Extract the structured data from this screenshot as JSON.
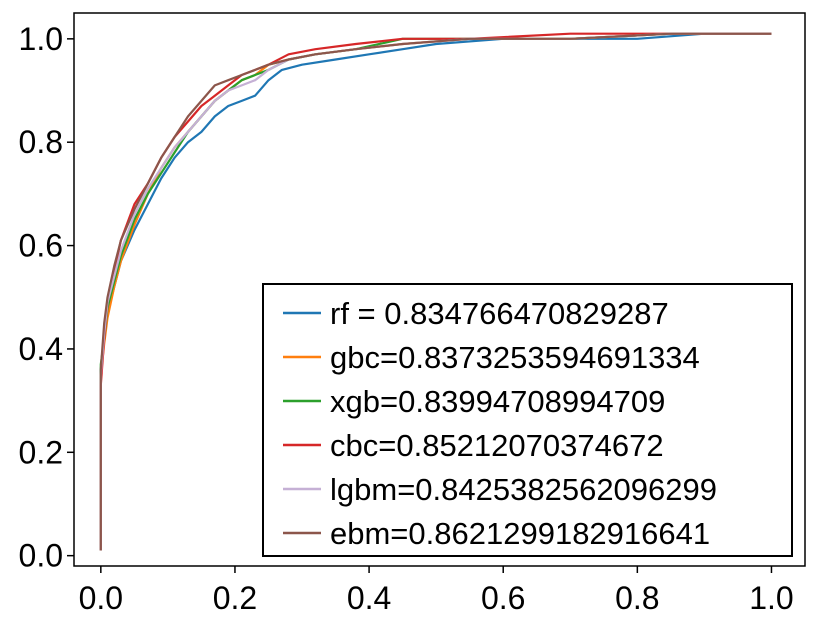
{
  "chart_data": {
    "type": "line",
    "title": "",
    "xlabel": "",
    "ylabel": "",
    "xlim": [
      -0.04,
      1.05
    ],
    "ylim": [
      -0.02,
      1.05
    ],
    "xticks": [
      0.0,
      0.2,
      0.4,
      0.6,
      0.8,
      1.0
    ],
    "yticks": [
      0.0,
      0.2,
      0.4,
      0.6,
      0.8,
      1.0
    ],
    "xtick_labels": [
      "0.0",
      "0.2",
      "0.4",
      "0.6",
      "0.8",
      "1.0"
    ],
    "ytick_labels": [
      "0.0",
      "0.2",
      "0.4",
      "0.6",
      "0.8",
      "1.0"
    ],
    "grid": false,
    "legend_position": "lower-right",
    "series": [
      {
        "name": "rf = 0.834766470829287",
        "color": "#1f77b4",
        "points": [
          [
            0.0,
            0.01
          ],
          [
            0.0,
            0.36
          ],
          [
            0.005,
            0.42
          ],
          [
            0.01,
            0.47
          ],
          [
            0.02,
            0.52
          ],
          [
            0.03,
            0.57
          ],
          [
            0.05,
            0.63
          ],
          [
            0.07,
            0.68
          ],
          [
            0.09,
            0.73
          ],
          [
            0.11,
            0.77
          ],
          [
            0.13,
            0.8
          ],
          [
            0.15,
            0.82
          ],
          [
            0.17,
            0.85
          ],
          [
            0.19,
            0.87
          ],
          [
            0.21,
            0.88
          ],
          [
            0.23,
            0.89
          ],
          [
            0.25,
            0.92
          ],
          [
            0.27,
            0.94
          ],
          [
            0.3,
            0.95
          ],
          [
            0.35,
            0.96
          ],
          [
            0.4,
            0.97
          ],
          [
            0.45,
            0.98
          ],
          [
            0.5,
            0.99
          ],
          [
            0.6,
            1.0
          ],
          [
            0.7,
            1.0
          ],
          [
            0.8,
            1.0
          ],
          [
            0.9,
            1.01
          ],
          [
            1.0,
            1.01
          ]
        ]
      },
      {
        "name": "gbc=0.8373253594691334",
        "color": "#ff7f0e",
        "points": [
          [
            0.0,
            0.01
          ],
          [
            0.0,
            0.35
          ],
          [
            0.005,
            0.41
          ],
          [
            0.01,
            0.46
          ],
          [
            0.02,
            0.52
          ],
          [
            0.03,
            0.57
          ],
          [
            0.05,
            0.64
          ],
          [
            0.07,
            0.7
          ],
          [
            0.09,
            0.75
          ],
          [
            0.11,
            0.79
          ],
          [
            0.13,
            0.82
          ],
          [
            0.15,
            0.85
          ],
          [
            0.17,
            0.88
          ],
          [
            0.19,
            0.9
          ],
          [
            0.21,
            0.92
          ],
          [
            0.23,
            0.93
          ],
          [
            0.25,
            0.95
          ],
          [
            0.28,
            0.96
          ],
          [
            0.32,
            0.97
          ],
          [
            0.38,
            0.98
          ],
          [
            0.45,
            0.99
          ],
          [
            0.55,
            1.0
          ],
          [
            0.7,
            1.0
          ],
          [
            0.85,
            1.01
          ],
          [
            1.0,
            1.01
          ]
        ]
      },
      {
        "name": "xgb=0.83994708994709",
        "color": "#2ca02c",
        "points": [
          [
            0.0,
            0.01
          ],
          [
            0.0,
            0.37
          ],
          [
            0.005,
            0.42
          ],
          [
            0.01,
            0.48
          ],
          [
            0.02,
            0.53
          ],
          [
            0.03,
            0.58
          ],
          [
            0.05,
            0.65
          ],
          [
            0.07,
            0.7
          ],
          [
            0.09,
            0.74
          ],
          [
            0.11,
            0.78
          ],
          [
            0.13,
            0.82
          ],
          [
            0.15,
            0.85
          ],
          [
            0.17,
            0.88
          ],
          [
            0.19,
            0.9
          ],
          [
            0.21,
            0.92
          ],
          [
            0.23,
            0.93
          ],
          [
            0.25,
            0.94
          ],
          [
            0.28,
            0.96
          ],
          [
            0.32,
            0.97
          ],
          [
            0.38,
            0.98
          ],
          [
            0.45,
            1.0
          ],
          [
            0.55,
            1.0
          ],
          [
            0.7,
            1.0
          ],
          [
            0.85,
            1.01
          ],
          [
            1.0,
            1.01
          ]
        ]
      },
      {
        "name": "cbc=0.85212070374672",
        "color": "#d62728",
        "points": [
          [
            0.0,
            0.01
          ],
          [
            0.0,
            0.33
          ],
          [
            0.005,
            0.42
          ],
          [
            0.01,
            0.49
          ],
          [
            0.02,
            0.55
          ],
          [
            0.03,
            0.61
          ],
          [
            0.05,
            0.68
          ],
          [
            0.07,
            0.72
          ],
          [
            0.09,
            0.77
          ],
          [
            0.11,
            0.81
          ],
          [
            0.13,
            0.84
          ],
          [
            0.15,
            0.87
          ],
          [
            0.17,
            0.89
          ],
          [
            0.19,
            0.91
          ],
          [
            0.21,
            0.93
          ],
          [
            0.23,
            0.94
          ],
          [
            0.25,
            0.95
          ],
          [
            0.28,
            0.97
          ],
          [
            0.32,
            0.98
          ],
          [
            0.38,
            0.99
          ],
          [
            0.45,
            1.0
          ],
          [
            0.55,
            1.0
          ],
          [
            0.7,
            1.01
          ],
          [
            0.85,
            1.01
          ],
          [
            1.0,
            1.01
          ]
        ]
      },
      {
        "name": "lgbm=0.8425382562096299",
        "color": "#c5b0d5",
        "points": [
          [
            0.0,
            0.01
          ],
          [
            0.0,
            0.35
          ],
          [
            0.005,
            0.43
          ],
          [
            0.01,
            0.49
          ],
          [
            0.02,
            0.54
          ],
          [
            0.03,
            0.59
          ],
          [
            0.05,
            0.66
          ],
          [
            0.07,
            0.71
          ],
          [
            0.09,
            0.75
          ],
          [
            0.11,
            0.79
          ],
          [
            0.13,
            0.82
          ],
          [
            0.15,
            0.85
          ],
          [
            0.17,
            0.88
          ],
          [
            0.19,
            0.9
          ],
          [
            0.21,
            0.91
          ],
          [
            0.23,
            0.92
          ],
          [
            0.25,
            0.94
          ],
          [
            0.28,
            0.96
          ],
          [
            0.32,
            0.97
          ],
          [
            0.38,
            0.98
          ],
          [
            0.45,
            0.99
          ],
          [
            0.55,
            1.0
          ],
          [
            0.7,
            1.0
          ],
          [
            0.85,
            1.01
          ],
          [
            1.0,
            1.01
          ]
        ]
      },
      {
        "name": "ebm=0.8621299182916641",
        "color": "#8c564b",
        "points": [
          [
            0.0,
            0.01
          ],
          [
            0.0,
            0.36
          ],
          [
            0.005,
            0.45
          ],
          [
            0.01,
            0.5
          ],
          [
            0.02,
            0.56
          ],
          [
            0.03,
            0.61
          ],
          [
            0.05,
            0.67
          ],
          [
            0.07,
            0.72
          ],
          [
            0.09,
            0.77
          ],
          [
            0.11,
            0.81
          ],
          [
            0.13,
            0.85
          ],
          [
            0.15,
            0.88
          ],
          [
            0.17,
            0.91
          ],
          [
            0.19,
            0.92
          ],
          [
            0.21,
            0.93
          ],
          [
            0.23,
            0.94
          ],
          [
            0.25,
            0.95
          ],
          [
            0.28,
            0.96
          ],
          [
            0.32,
            0.97
          ],
          [
            0.38,
            0.98
          ],
          [
            0.45,
            0.99
          ],
          [
            0.55,
            1.0
          ],
          [
            0.7,
            1.0
          ],
          [
            0.85,
            1.01
          ],
          [
            1.0,
            1.01
          ]
        ]
      }
    ]
  }
}
